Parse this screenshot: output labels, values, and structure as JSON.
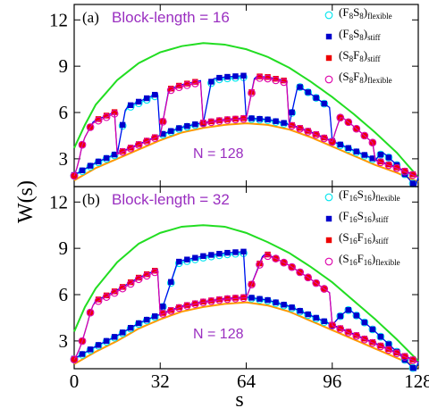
{
  "chart_data": {
    "type": "line",
    "xlabel": "s",
    "ylabel": "W(s)",
    "x_ticks": [
      0,
      32,
      64,
      96,
      128
    ],
    "y_ticks": [
      3,
      6,
      9,
      12
    ],
    "xlim": [
      0,
      128
    ],
    "ylim": [
      1.2,
      13
    ],
    "panels": [
      {
        "tag": "(a)",
        "title": "Block-length = 16",
        "n_label": "N = 128",
        "block_length": 16,
        "legend": [
          {
            "base": "(F",
            "s1": "8",
            "mid": "S",
            "s2": "8",
            "close": ")",
            "sub": "flexible",
            "marker": "circle",
            "color": "#00e5ee"
          },
          {
            "base": "(F",
            "s1": "8",
            "mid": "S",
            "s2": "8",
            "close": ")",
            "sub": "stiff",
            "marker": "square",
            "color": "#0000cc"
          },
          {
            "base": "(S",
            "s1": "8",
            "mid": "F",
            "s2": "8",
            "close": ")",
            "sub": "stiff",
            "marker": "square",
            "color": "#ee0000"
          },
          {
            "base": "(S",
            "s1": "8",
            "mid": "F",
            "s2": "8",
            "close": ")",
            "sub": "flexible",
            "marker": "circle",
            "color": "#dd00aa"
          }
        ],
        "series": [
          {
            "marker": "circle",
            "color": "#00e5ee",
            "flex_first": true,
            "period": 8,
            "phase": 0,
            "low_offset": -0.35,
            "high_offset": 3.0
          },
          {
            "marker": "square",
            "color": "#0000cc",
            "flex_first": true,
            "period": 8,
            "phase": 0,
            "low_offset": -0.3,
            "high_offset": 3.1
          },
          {
            "marker": "square",
            "color": "#ee0000",
            "flex_first": false,
            "period": 8,
            "phase": 0,
            "low_offset": -0.3,
            "high_offset": 3.1
          },
          {
            "marker": "circle",
            "color": "#dd00aa",
            "flex_first": false,
            "period": 8,
            "phase": 0,
            "low_offset": -0.35,
            "high_offset": 3.0
          }
        ],
        "reference_curves": [
          {
            "color": "#22dd22",
            "points": [
              [
                0,
                3.7
              ],
              [
                4,
                5.2
              ],
              [
                8,
                6.5
              ],
              [
                16,
                8.1
              ],
              [
                24,
                9.2
              ],
              [
                32,
                9.9
              ],
              [
                40,
                10.3
              ],
              [
                48,
                10.5
              ],
              [
                56,
                10.4
              ],
              [
                64,
                10.1
              ],
              [
                72,
                9.6
              ],
              [
                80,
                8.9
              ],
              [
                88,
                8.0
              ],
              [
                96,
                7.0
              ],
              [
                104,
                5.9
              ],
              [
                112,
                4.7
              ],
              [
                120,
                3.4
              ],
              [
                128,
                1.8
              ]
            ]
          },
          {
            "color": "#ff9900",
            "points": [
              [
                0,
                1.6
              ],
              [
                8,
                2.4
              ],
              [
                16,
                3.0
              ],
              [
                24,
                3.6
              ],
              [
                32,
                4.2
              ],
              [
                40,
                4.7
              ],
              [
                48,
                5.0
              ],
              [
                56,
                5.2
              ],
              [
                64,
                5.3
              ],
              [
                72,
                5.2
              ],
              [
                80,
                4.9
              ],
              [
                88,
                4.4
              ],
              [
                96,
                3.8
              ],
              [
                104,
                3.2
              ],
              [
                112,
                2.6
              ],
              [
                120,
                2.1
              ],
              [
                128,
                1.5
              ]
            ]
          }
        ]
      },
      {
        "tag": "(b)",
        "title": "Block-length = 32",
        "n_label": "N = 128",
        "block_length": 32,
        "legend": [
          {
            "base": "(F",
            "s1": "16",
            "mid": "S",
            "s2": "16",
            "close": ")",
            "sub": "flexible",
            "marker": "circle",
            "color": "#00e5ee"
          },
          {
            "base": "(F",
            "s1": "16",
            "mid": "S",
            "s2": "16",
            "close": ")",
            "sub": "stiff",
            "marker": "square",
            "color": "#0000cc"
          },
          {
            "base": "(S",
            "s1": "16",
            "mid": "F",
            "s2": "16",
            "close": ")",
            "sub": "stiff",
            "marker": "square",
            "color": "#ee0000"
          },
          {
            "base": "(S",
            "s1": "16",
            "mid": "F",
            "s2": "16",
            "close": ")",
            "sub": "flexible",
            "marker": "circle",
            "color": "#dd00aa"
          }
        ],
        "series": [
          {
            "marker": "circle",
            "color": "#00e5ee",
            "flex_first": true,
            "period": 16,
            "phase": 0,
            "low_offset": -0.35,
            "high_offset": 3.2
          },
          {
            "marker": "square",
            "color": "#0000cc",
            "flex_first": true,
            "period": 16,
            "phase": 0,
            "low_offset": -0.3,
            "high_offset": 3.3
          },
          {
            "marker": "square",
            "color": "#ee0000",
            "flex_first": false,
            "period": 16,
            "phase": 0,
            "low_offset": -0.3,
            "high_offset": 3.3
          },
          {
            "marker": "circle",
            "color": "#dd00aa",
            "flex_first": false,
            "period": 16,
            "phase": 0,
            "low_offset": -0.35,
            "high_offset": 3.2
          }
        ],
        "reference_curves": [
          {
            "color": "#22dd22",
            "points": [
              [
                0,
                3.6
              ],
              [
                4,
                5.2
              ],
              [
                8,
                6.4
              ],
              [
                16,
                8.1
              ],
              [
                24,
                9.3
              ],
              [
                32,
                10.0
              ],
              [
                40,
                10.4
              ],
              [
                48,
                10.5
              ],
              [
                56,
                10.4
              ],
              [
                64,
                10.0
              ],
              [
                72,
                9.4
              ],
              [
                80,
                8.7
              ],
              [
                88,
                7.8
              ],
              [
                96,
                6.8
              ],
              [
                104,
                5.6
              ],
              [
                112,
                4.4
              ],
              [
                120,
                3.1
              ],
              [
                128,
                1.7
              ]
            ]
          },
          {
            "color": "#ff9900",
            "points": [
              [
                0,
                1.5
              ],
              [
                8,
                2.3
              ],
              [
                16,
                3.0
              ],
              [
                24,
                3.8
              ],
              [
                32,
                4.4
              ],
              [
                40,
                4.9
              ],
              [
                48,
                5.2
              ],
              [
                56,
                5.4
              ],
              [
                64,
                5.5
              ],
              [
                72,
                5.3
              ],
              [
                80,
                4.9
              ],
              [
                88,
                4.3
              ],
              [
                96,
                3.7
              ],
              [
                104,
                3.1
              ],
              [
                112,
                2.5
              ],
              [
                120,
                1.9
              ],
              [
                128,
                1.3
              ]
            ]
          }
        ]
      }
    ]
  }
}
